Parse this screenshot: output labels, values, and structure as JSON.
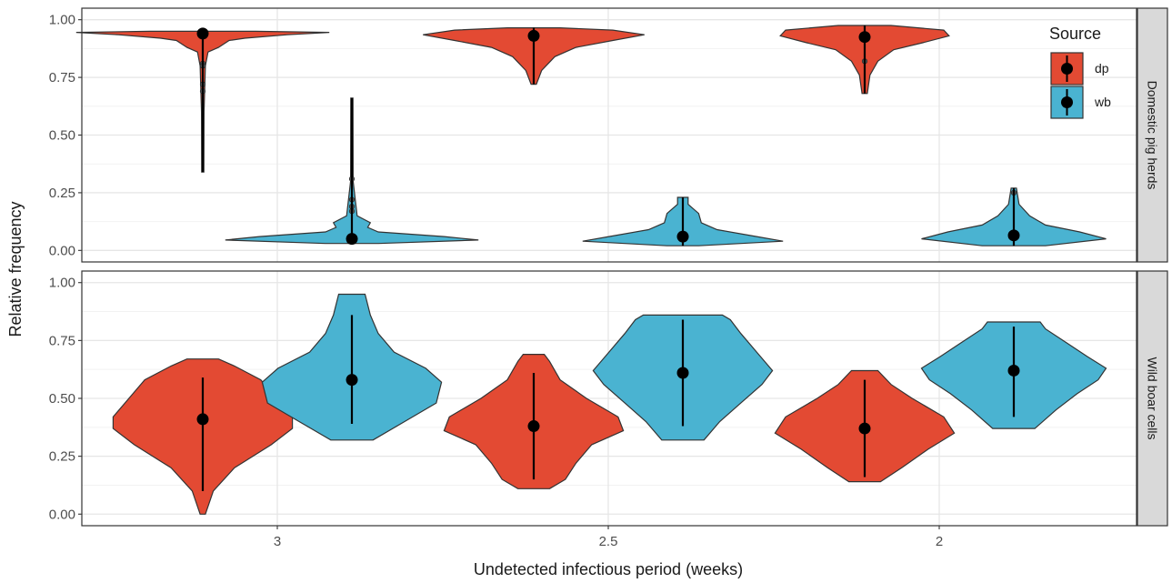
{
  "chart_data": {
    "type": "violin",
    "xlabel": "Undetected infectious period (weeks)",
    "ylabel": "Relative frequency",
    "categories": [
      "3",
      "2.5",
      "2"
    ],
    "y_ticks": [
      "0.00",
      "0.25",
      "0.50",
      "0.75",
      "1.00"
    ],
    "ylim": [
      0,
      1
    ],
    "grid": true,
    "legend": {
      "title": "Source",
      "position": "top-right",
      "entries": [
        {
          "key": "dp",
          "label": "dp",
          "color": "#e34a33"
        },
        {
          "key": "wb",
          "label": "wb",
          "color": "#4ab3d1"
        }
      ]
    },
    "facets": [
      {
        "label": "Domestic pig herds",
        "series": [
          {
            "category": "3",
            "source": "dp",
            "median": 0.94,
            "lower": 0.34,
            "upper": 0.945,
            "outliers": [
              0.81,
              0.8,
              0.72,
              0.69
            ],
            "shape": [
              [
                0.34,
                0.004
              ],
              [
                0.6,
                0.005
              ],
              [
                0.8,
                0.01
              ],
              [
                0.86,
                0.02
              ],
              [
                0.88,
                0.06
              ],
              [
                0.91,
                0.1
              ],
              [
                0.92,
                0.16
              ],
              [
                0.935,
                0.32
              ],
              [
                0.945,
                0.48
              ],
              [
                0.95,
                0.2
              ]
            ]
          },
          {
            "category": "3",
            "source": "wb",
            "median": 0.05,
            "lower": 0.03,
            "upper": 0.66,
            "outliers": [
              0.31,
              0.22,
              0.19,
              0.17
            ],
            "shape": [
              [
                0.03,
                0.1
              ],
              [
                0.045,
                0.48
              ],
              [
                0.06,
                0.35
              ],
              [
                0.08,
                0.1
              ],
              [
                0.1,
                0.06
              ],
              [
                0.12,
                0.07
              ],
              [
                0.15,
                0.02
              ],
              [
                0.3,
                0.005
              ],
              [
                0.66,
                0.004
              ]
            ]
          },
          {
            "category": "2.5",
            "source": "dp",
            "median": 0.93,
            "lower": 0.72,
            "upper": 0.965,
            "outliers": [],
            "shape": [
              [
                0.72,
                0.01
              ],
              [
                0.78,
                0.03
              ],
              [
                0.84,
                0.08
              ],
              [
                0.88,
                0.16
              ],
              [
                0.91,
                0.3
              ],
              [
                0.935,
                0.42
              ],
              [
                0.955,
                0.3
              ],
              [
                0.965,
                0.1
              ]
            ]
          },
          {
            "category": "2.5",
            "source": "wb",
            "median": 0.06,
            "lower": 0.02,
            "upper": 0.23,
            "outliers": [],
            "shape": [
              [
                0.02,
                0.06
              ],
              [
                0.04,
                0.38
              ],
              [
                0.06,
                0.28
              ],
              [
                0.09,
                0.13
              ],
              [
                0.12,
                0.07
              ],
              [
                0.16,
                0.06
              ],
              [
                0.2,
                0.02
              ],
              [
                0.23,
                0.02
              ]
            ]
          },
          {
            "category": "2",
            "source": "dp",
            "median": 0.925,
            "lower": 0.68,
            "upper": 0.975,
            "outliers": [
              0.82
            ],
            "shape": [
              [
                0.68,
                0.01
              ],
              [
                0.76,
                0.02
              ],
              [
                0.82,
                0.05
              ],
              [
                0.87,
                0.11
              ],
              [
                0.9,
                0.22
              ],
              [
                0.93,
                0.32
              ],
              [
                0.955,
                0.3
              ],
              [
                0.975,
                0.1
              ]
            ]
          },
          {
            "category": "2",
            "source": "wb",
            "median": 0.065,
            "lower": 0.02,
            "upper": 0.27,
            "outliers": [
              0.25
            ],
            "shape": [
              [
                0.02,
                0.12
              ],
              [
                0.05,
                0.35
              ],
              [
                0.08,
                0.25
              ],
              [
                0.11,
                0.12
              ],
              [
                0.15,
                0.06
              ],
              [
                0.2,
                0.02
              ],
              [
                0.27,
                0.01
              ]
            ]
          }
        ]
      },
      {
        "label": "Wild boar cells",
        "series": [
          {
            "category": "3",
            "source": "dp",
            "median": 0.41,
            "lower": 0.1,
            "upper": 0.59,
            "outliers": [],
            "shape": [
              [
                0.0,
                0.01
              ],
              [
                0.1,
                0.04
              ],
              [
                0.2,
                0.12
              ],
              [
                0.3,
                0.26
              ],
              [
                0.37,
                0.34
              ],
              [
                0.42,
                0.34
              ],
              [
                0.5,
                0.28
              ],
              [
                0.58,
                0.22
              ],
              [
                0.64,
                0.12
              ],
              [
                0.67,
                0.06
              ]
            ]
          },
          {
            "category": "3",
            "source": "wb",
            "median": 0.58,
            "lower": 0.39,
            "upper": 0.86,
            "outliers": [],
            "shape": [
              [
                0.32,
                0.08
              ],
              [
                0.4,
                0.2
              ],
              [
                0.48,
                0.32
              ],
              [
                0.57,
                0.34
              ],
              [
                0.63,
                0.28
              ],
              [
                0.7,
                0.16
              ],
              [
                0.78,
                0.1
              ],
              [
                0.86,
                0.07
              ],
              [
                0.95,
                0.05
              ]
            ]
          },
          {
            "category": "2.5",
            "source": "dp",
            "median": 0.38,
            "lower": 0.15,
            "upper": 0.61,
            "outliers": [],
            "shape": [
              [
                0.11,
                0.06
              ],
              [
                0.15,
                0.12
              ],
              [
                0.22,
                0.16
              ],
              [
                0.3,
                0.22
              ],
              [
                0.36,
                0.34
              ],
              [
                0.42,
                0.32
              ],
              [
                0.5,
                0.2
              ],
              [
                0.58,
                0.1
              ],
              [
                0.66,
                0.06
              ],
              [
                0.69,
                0.04
              ]
            ]
          },
          {
            "category": "2.5",
            "source": "wb",
            "median": 0.61,
            "lower": 0.38,
            "upper": 0.84,
            "outliers": [],
            "shape": [
              [
                0.32,
                0.08
              ],
              [
                0.4,
                0.14
              ],
              [
                0.48,
                0.22
              ],
              [
                0.56,
                0.3
              ],
              [
                0.62,
                0.34
              ],
              [
                0.7,
                0.28
              ],
              [
                0.78,
                0.22
              ],
              [
                0.84,
                0.18
              ],
              [
                0.86,
                0.15
              ]
            ]
          },
          {
            "category": "2",
            "source": "dp",
            "median": 0.37,
            "lower": 0.16,
            "upper": 0.58,
            "outliers": [],
            "shape": [
              [
                0.14,
                0.06
              ],
              [
                0.2,
                0.14
              ],
              [
                0.28,
                0.24
              ],
              [
                0.35,
                0.34
              ],
              [
                0.42,
                0.3
              ],
              [
                0.5,
                0.18
              ],
              [
                0.56,
                0.1
              ],
              [
                0.62,
                0.05
              ]
            ]
          },
          {
            "category": "2",
            "source": "wb",
            "median": 0.62,
            "lower": 0.42,
            "upper": 0.81,
            "outliers": [],
            "shape": [
              [
                0.37,
                0.08
              ],
              [
                0.45,
                0.16
              ],
              [
                0.52,
                0.24
              ],
              [
                0.58,
                0.32
              ],
              [
                0.63,
                0.35
              ],
              [
                0.68,
                0.28
              ],
              [
                0.74,
                0.2
              ],
              [
                0.8,
                0.12
              ],
              [
                0.83,
                0.1
              ]
            ]
          }
        ]
      }
    ]
  }
}
